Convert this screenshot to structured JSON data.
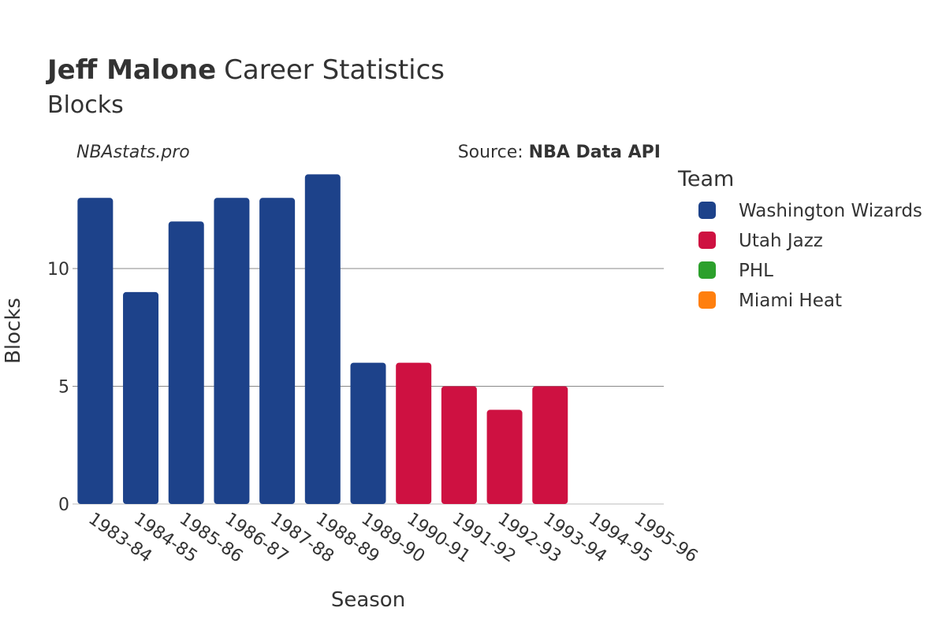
{
  "header": {
    "player_name": "Jeff Malone",
    "title_rest": "Career Statistics",
    "subtitle": "Blocks"
  },
  "watermark": "NBAstats.pro",
  "source": {
    "prefix": "Source: ",
    "name": "NBA Data API"
  },
  "legend": {
    "title": "Team",
    "items": [
      {
        "name": "Washington Wizards",
        "color": "#1d428a"
      },
      {
        "name": "Utah Jazz",
        "color": "#ce1141"
      },
      {
        "name": "PHL",
        "color": "#2ca02c"
      },
      {
        "name": "Miami Heat",
        "color": "#ff7f0e"
      }
    ]
  },
  "chart_data": {
    "type": "bar",
    "title": "Jeff Malone Career Statistics",
    "subtitle": "Blocks",
    "xlabel": "Season",
    "ylabel": "Blocks",
    "ylim": [
      0,
      14
    ],
    "yticks": [
      0,
      5,
      10
    ],
    "grid": true,
    "legend_position": "right",
    "categories": [
      "1983-84",
      "1984-85",
      "1985-86",
      "1986-87",
      "1987-88",
      "1988-89",
      "1989-90",
      "1990-91",
      "1991-92",
      "1992-93",
      "1993-94",
      "1994-95",
      "1995-96"
    ],
    "values": [
      13,
      9,
      12,
      13,
      13,
      14,
      6,
      6,
      5,
      4,
      5,
      0,
      0
    ],
    "teams": [
      "Washington Wizards",
      "Washington Wizards",
      "Washington Wizards",
      "Washington Wizards",
      "Washington Wizards",
      "Washington Wizards",
      "Washington Wizards",
      "Utah Jazz",
      "Utah Jazz",
      "Utah Jazz",
      "Utah Jazz",
      "PHL",
      "Miami Heat"
    ]
  }
}
